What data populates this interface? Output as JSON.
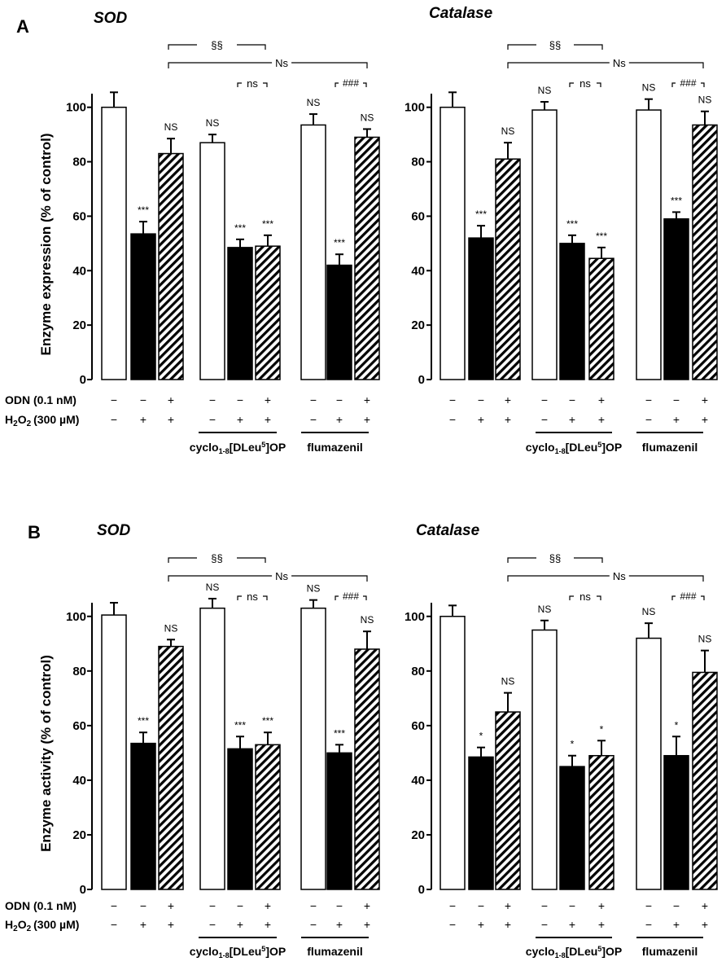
{
  "panels": [
    {
      "letter": "A",
      "ylabel": "Enzyme expression (% of control)"
    },
    {
      "letter": "B",
      "ylabel": "Enzyme activity (% of control)"
    }
  ],
  "conditions": {
    "odn_label": "ODN (0.1 nM)",
    "h2o2_label": "H",
    "h2o2_sub": "2",
    "h2o2_o": "O",
    "h2o2_sub2": "2",
    "h2o2_conc": "(300 µM)",
    "odn": [
      "−",
      "−",
      "+",
      "−",
      "−",
      "+",
      "−",
      "−",
      "+"
    ],
    "h2o2": [
      "−",
      "+",
      "+",
      "−",
      "+",
      "+",
      "−",
      "+",
      "+"
    ]
  },
  "groups": [
    {
      "name": "cyclo",
      "sub": "1-8",
      "rest": "[DLeu",
      "sup": "5",
      "end": "]OP"
    },
    {
      "name": "flumazenil"
    }
  ],
  "brackets": {
    "paragraph": "§§",
    "ns_big": "Ns",
    "ns_small": "ns",
    "hash": "###"
  },
  "chart_data": [
    {
      "type": "bar",
      "panel": "A",
      "title": "SOD",
      "ylim": [
        0,
        105
      ],
      "yticks": [
        0,
        20,
        40,
        60,
        80,
        100
      ],
      "bars": [
        {
          "value": 100,
          "error": 5.5,
          "fill": "white",
          "label": ""
        },
        {
          "value": 53.5,
          "error": 4.5,
          "fill": "black",
          "label": "***"
        },
        {
          "value": 83,
          "error": 5.5,
          "fill": "hatch",
          "label": "NS"
        },
        {
          "value": 87,
          "error": 3,
          "fill": "white",
          "label": "NS"
        },
        {
          "value": 48.5,
          "error": 3,
          "fill": "black",
          "label": "***"
        },
        {
          "value": 49,
          "error": 4,
          "fill": "hatch",
          "label": "***"
        },
        {
          "value": 93.5,
          "error": 4,
          "fill": "white",
          "label": "NS"
        },
        {
          "value": 42,
          "error": 4,
          "fill": "black",
          "label": "***"
        },
        {
          "value": 89,
          "error": 3,
          "fill": "hatch",
          "label": "NS"
        }
      ]
    },
    {
      "type": "bar",
      "panel": "A",
      "title": "Catalase",
      "ylim": [
        0,
        105
      ],
      "yticks": [
        0,
        20,
        40,
        60,
        80,
        100
      ],
      "bars": [
        {
          "value": 100,
          "error": 5.5,
          "fill": "white",
          "label": ""
        },
        {
          "value": 52,
          "error": 4.5,
          "fill": "black",
          "label": "***"
        },
        {
          "value": 81,
          "error": 6,
          "fill": "hatch",
          "label": "NS"
        },
        {
          "value": 99,
          "error": 3,
          "fill": "white",
          "label": "NS"
        },
        {
          "value": 50,
          "error": 3,
          "fill": "black",
          "label": "***"
        },
        {
          "value": 44.5,
          "error": 4,
          "fill": "hatch",
          "label": "***"
        },
        {
          "value": 99,
          "error": 4,
          "fill": "white",
          "label": "NS"
        },
        {
          "value": 59,
          "error": 2.5,
          "fill": "black",
          "label": "***"
        },
        {
          "value": 93.5,
          "error": 5,
          "fill": "hatch",
          "label": "NS"
        }
      ]
    },
    {
      "type": "bar",
      "panel": "B",
      "title": "SOD",
      "ylim": [
        0,
        105
      ],
      "yticks": [
        0,
        20,
        40,
        60,
        80,
        100
      ],
      "bars": [
        {
          "value": 100.5,
          "error": 4.5,
          "fill": "white",
          "label": ""
        },
        {
          "value": 53.5,
          "error": 4,
          "fill": "black",
          "label": "***"
        },
        {
          "value": 89,
          "error": 2.5,
          "fill": "hatch",
          "label": "NS"
        },
        {
          "value": 103,
          "error": 3.5,
          "fill": "white",
          "label": "NS"
        },
        {
          "value": 51.5,
          "error": 4.5,
          "fill": "black",
          "label": "***"
        },
        {
          "value": 53,
          "error": 4.5,
          "fill": "hatch",
          "label": "***"
        },
        {
          "value": 103,
          "error": 3,
          "fill": "white",
          "label": "NS"
        },
        {
          "value": 50,
          "error": 3,
          "fill": "black",
          "label": "***"
        },
        {
          "value": 88,
          "error": 6.5,
          "fill": "hatch",
          "label": "NS"
        }
      ]
    },
    {
      "type": "bar",
      "panel": "B",
      "title": "Catalase",
      "ylim": [
        0,
        105
      ],
      "yticks": [
        0,
        20,
        40,
        60,
        80,
        100
      ],
      "bars": [
        {
          "value": 100,
          "error": 4,
          "fill": "white",
          "label": ""
        },
        {
          "value": 48.5,
          "error": 3.5,
          "fill": "black",
          "label": "*"
        },
        {
          "value": 65,
          "error": 7,
          "fill": "hatch",
          "label": "NS"
        },
        {
          "value": 95,
          "error": 3.5,
          "fill": "white",
          "label": "NS"
        },
        {
          "value": 45,
          "error": 4,
          "fill": "black",
          "label": "*"
        },
        {
          "value": 49,
          "error": 5.5,
          "fill": "hatch",
          "label": "*"
        },
        {
          "value": 92,
          "error": 5.5,
          "fill": "white",
          "label": "NS"
        },
        {
          "value": 49,
          "error": 7,
          "fill": "black",
          "label": "*"
        },
        {
          "value": 79.5,
          "error": 8,
          "fill": "hatch",
          "label": "NS"
        }
      ]
    }
  ]
}
